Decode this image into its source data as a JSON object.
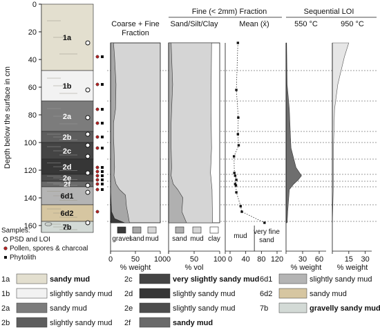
{
  "chart_data": {
    "type": "stratigraphic-profile",
    "y_axis": {
      "label": "Depth below the surface in cm",
      "ticks": [
        0,
        20,
        40,
        60,
        80,
        100,
        120,
        140,
        160
      ],
      "range": [
        0,
        165
      ]
    },
    "units": [
      {
        "id": "1a",
        "top": 0,
        "bottom": 48,
        "fill": "#e3dfcf",
        "desc": "sandy mud"
      },
      {
        "id": "1b",
        "top": 48,
        "bottom": 70,
        "fill": "#f2f2f2",
        "desc": "slightly sandy mud"
      },
      {
        "id": "2a",
        "top": 70,
        "bottom": 92,
        "fill": "#7c7c7c",
        "desc": "sandy mud"
      },
      {
        "id": "2b",
        "top": 92,
        "bottom": 100,
        "fill": "#5e5e5e",
        "desc": "slightly sandy mud"
      },
      {
        "id": "2c",
        "top": 100,
        "bottom": 112,
        "fill": "#444444",
        "desc": "very slightly sandy mud"
      },
      {
        "id": "2d",
        "top": 112,
        "bottom": 123,
        "fill": "#363636",
        "desc": "slightly sandy mud"
      },
      {
        "id": "2e",
        "top": 123,
        "bottom": 128,
        "fill": "#4d4d4d",
        "desc": "slightly sandy mud"
      },
      {
        "id": "2f",
        "top": 128,
        "bottom": 132,
        "fill": "#6a6a6a",
        "desc": "sandy mud"
      },
      {
        "id": "6d1",
        "top": 132,
        "bottom": 145,
        "fill": "#b4b4b4",
        "desc": "slightly sandy mud"
      },
      {
        "id": "6d2",
        "top": 145,
        "bottom": 157,
        "fill": "#d6c6a1",
        "desc": "sandy mud"
      },
      {
        "id": "7b",
        "top": 157,
        "bottom": 165,
        "fill": "#d3dad6",
        "desc": "gravelly sandy mud"
      }
    ],
    "legend_desc_bold": [
      "1a",
      "2c",
      "7b",
      "2f"
    ],
    "samples": {
      "legend_title": "Samples:",
      "psd_label": "PSD and LOI",
      "pollen_label": "Pollen, spores & charcoal",
      "phytolith_label": "Phytolith",
      "psd_depths": [
        28,
        62,
        82,
        94,
        102,
        110,
        122,
        131,
        136,
        158
      ],
      "pollen_depths": [
        38,
        58,
        76,
        86,
        96,
        104,
        118,
        121,
        124,
        127,
        130,
        134,
        150
      ],
      "phytolith_depths": [
        38,
        58,
        76,
        86,
        96,
        104,
        118,
        121,
        124,
        127,
        130,
        134
      ]
    },
    "boundary_depths": [
      48,
      70,
      92,
      100,
      112,
      123,
      128,
      132,
      145,
      157
    ],
    "depth_levels": [
      28,
      38,
      58,
      62,
      76,
      82,
      86,
      94,
      96,
      102,
      104,
      110,
      118,
      121,
      122,
      124,
      127,
      130,
      131,
      134,
      136,
      150,
      158
    ],
    "coarse_fine": {
      "title": [
        "Coarse + Fine",
        "Fraction"
      ],
      "xlabel": "% weight",
      "xticks": [
        0,
        50,
        100
      ],
      "legend": [
        "gravel",
        "sand",
        "mud"
      ],
      "colors": [
        "#3a3a3a",
        "#a7a7a7",
        "#d5d5d5"
      ],
      "gravel_sand_boundary": [
        [
          28,
          0
        ],
        [
          134,
          0
        ],
        [
          150,
          2
        ],
        [
          155,
          8
        ],
        [
          158,
          28
        ]
      ],
      "sand_mud_boundary": [
        [
          28,
          6
        ],
        [
          38,
          8
        ],
        [
          58,
          11
        ],
        [
          76,
          10
        ],
        [
          86,
          6
        ],
        [
          96,
          6
        ],
        [
          104,
          7
        ],
        [
          118,
          8
        ],
        [
          124,
          7
        ],
        [
          130,
          11
        ],
        [
          134,
          18
        ],
        [
          138,
          30
        ],
        [
          146,
          32
        ],
        [
          150,
          34
        ],
        [
          158,
          38
        ]
      ]
    },
    "fine_fraction_title": "Fine (< 2mm) Fraction",
    "sand_silt_clay": {
      "title": "Sand/Silt/Clay",
      "xlabel": "% vol",
      "xticks": [
        0,
        50,
        100
      ],
      "legend": [
        "sand",
        "mud",
        "clay"
      ],
      "colors": [
        "#b0b0b0",
        "#d5d5d5",
        "#ffffff"
      ],
      "sand_mud_boundary": [
        [
          28,
          5
        ],
        [
          38,
          6
        ],
        [
          58,
          8
        ],
        [
          76,
          6
        ],
        [
          86,
          5
        ],
        [
          96,
          5
        ],
        [
          104,
          5
        ],
        [
          118,
          6
        ],
        [
          124,
          5
        ],
        [
          130,
          9
        ],
        [
          134,
          18
        ],
        [
          140,
          28
        ],
        [
          150,
          26
        ],
        [
          158,
          35
        ]
      ],
      "mud_clay_boundary": [
        [
          28,
          84
        ],
        [
          76,
          83
        ],
        [
          104,
          84
        ],
        [
          122,
          82
        ],
        [
          134,
          85
        ],
        [
          158,
          86
        ]
      ]
    },
    "mean_grain": {
      "title": "Mean (x̄)",
      "xlabel": "",
      "xticks": [
        0,
        40,
        80,
        120
      ],
      "zones": [
        "mud",
        "very fine",
        "sand"
      ],
      "points": [
        [
          28,
          20
        ],
        [
          62,
          16
        ],
        [
          82,
          21
        ],
        [
          94,
          20
        ],
        [
          102,
          22
        ],
        [
          110,
          10
        ],
        [
          122,
          11
        ],
        [
          124,
          13
        ],
        [
          127,
          16
        ],
        [
          130,
          13
        ],
        [
          131,
          15
        ],
        [
          136,
          16
        ],
        [
          146,
          27
        ],
        [
          150,
          30
        ],
        [
          158,
          88
        ]
      ]
    },
    "loi_title": "Sequential LOI",
    "loi_550": {
      "title": "550 °C",
      "xlabel": "% weight",
      "xticks": [
        30,
        60
      ],
      "values": [
        [
          28,
          1
        ],
        [
          58,
          2
        ],
        [
          76,
          6
        ],
        [
          96,
          8
        ],
        [
          104,
          9
        ],
        [
          118,
          18
        ],
        [
          124,
          28
        ],
        [
          127,
          22
        ],
        [
          130,
          14
        ],
        [
          134,
          6
        ],
        [
          150,
          3
        ],
        [
          158,
          2
        ]
      ]
    },
    "loi_950": {
      "title": "950 °C",
      "xlabel": "% weight",
      "xticks": [
        15,
        30
      ],
      "values": [
        [
          28,
          15
        ],
        [
          38,
          11
        ],
        [
          58,
          5
        ],
        [
          76,
          2
        ],
        [
          104,
          1
        ],
        [
          130,
          1
        ],
        [
          158,
          0
        ]
      ]
    }
  }
}
